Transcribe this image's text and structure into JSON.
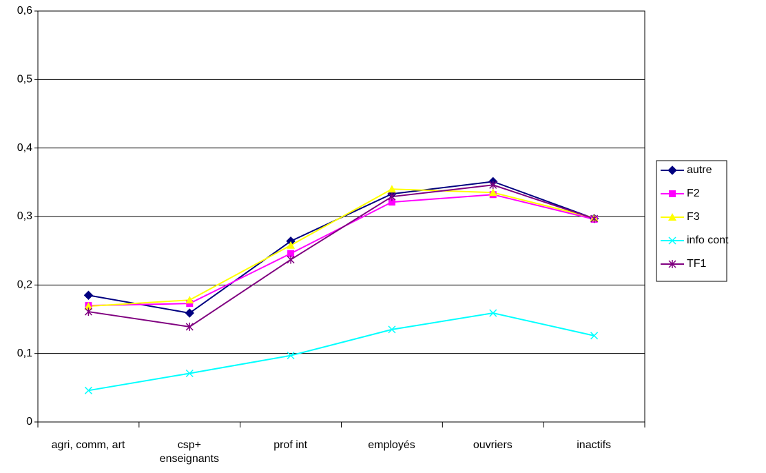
{
  "chart_data": {
    "type": "line",
    "categories": [
      "agri, comm, art",
      "csp+\nenseignants",
      "prof int",
      "employés",
      "ouvriers",
      "inactifs"
    ],
    "series": [
      {
        "name": "autre",
        "color": "#000080",
        "marker": "diamond",
        "values": [
          0.185,
          0.159,
          0.264,
          0.333,
          0.351,
          0.297
        ]
      },
      {
        "name": "F2",
        "color": "#ff00ff",
        "marker": "square",
        "values": [
          0.17,
          0.173,
          0.246,
          0.321,
          0.332,
          0.296
        ]
      },
      {
        "name": "F3",
        "color": "#ffff00",
        "marker": "triangle",
        "values": [
          0.169,
          0.178,
          0.258,
          0.34,
          0.335,
          0.298
        ]
      },
      {
        "name": "info cont",
        "color": "#00ffff",
        "marker": "x",
        "values": [
          0.046,
          0.071,
          0.097,
          0.135,
          0.159,
          0.126
        ]
      },
      {
        "name": "TF1",
        "color": "#800080",
        "marker": "star",
        "values": [
          0.161,
          0.139,
          0.237,
          0.329,
          0.346,
          0.297
        ]
      }
    ],
    "ylim": [
      0,
      0.6
    ],
    "yticks": [
      0,
      {
        "value": 0.1,
        "label": "0,1"
      },
      {
        "value": 0.2,
        "label": "0,2"
      },
      {
        "value": 0.3,
        "label": "0,3"
      },
      {
        "value": 0.4,
        "label": "0,4"
      },
      {
        "value": 0.5,
        "label": "0,5"
      },
      {
        "value": 0.6,
        "label": "0,6"
      }
    ],
    "grid": true,
    "legend": "right"
  }
}
